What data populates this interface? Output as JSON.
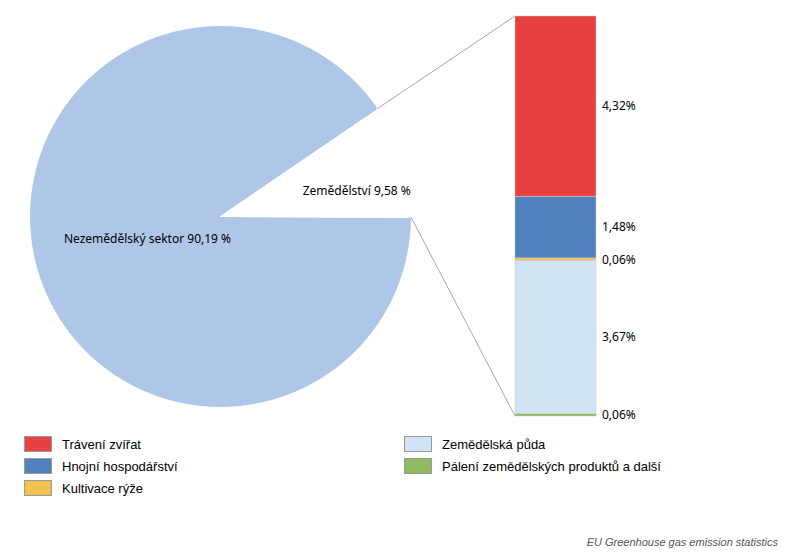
{
  "chart_data": [
    {
      "type": "pie",
      "categories": [
        "Nezemědělský sektor 90,19 %",
        "Zemědělství 9,58 %"
      ],
      "values": [
        90.19,
        9.58
      ],
      "colors": [
        "#aec6e8",
        "#ffffff"
      ],
      "annotations": [
        "EU Greenhouse gas emission statistics"
      ]
    },
    {
      "type": "bar",
      "stacked": true,
      "categories": [
        null
      ],
      "series": [
        {
          "name": "Pálení zemědělských produktů a další",
          "color": "#8fbc60",
          "values": [
            0.06
          ],
          "value_labels": [
            "0,06%"
          ]
        },
        {
          "name": "Zemědělská půda",
          "color": "#d0e4f5",
          "values": [
            3.67
          ],
          "value_labels": [
            "3,67%"
          ]
        },
        {
          "name": "Kultivace rýže",
          "color": "#f0c050",
          "values": [
            0.06
          ],
          "value_labels": [
            "0,06%"
          ]
        },
        {
          "name": "Hnojní hospodářství",
          "color": "#4f81bd",
          "values": [
            1.48
          ],
          "value_labels": [
            "1,48%"
          ]
        },
        {
          "name": "Trávení zvířat",
          "color": "#e84040",
          "values": [
            4.32
          ],
          "value_labels": [
            "4,32%"
          ]
        }
      ],
      "ylim": [
        0,
        9.59
      ],
      "tick_labels": false,
      "data_labels": true,
      "legend": "bottom"
    }
  ]
}
